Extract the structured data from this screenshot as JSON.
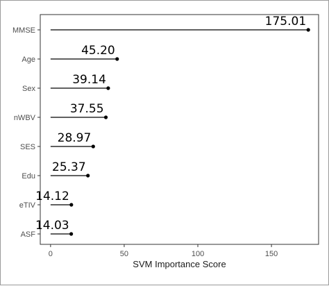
{
  "chart_data": {
    "type": "lollipop",
    "categories": [
      "MMSE",
      "Age",
      "Sex",
      "nWBV",
      "SES",
      "Edu",
      "eTIV",
      "ASF"
    ],
    "values": [
      175.01,
      45.2,
      39.14,
      37.55,
      28.97,
      25.37,
      14.12,
      14.03
    ],
    "value_labels": [
      "175.01",
      "45.20",
      "39.14",
      "37.55",
      "28.97",
      "25.37",
      "14.12",
      "14.03"
    ],
    "xlabel": "SVM Importance Score",
    "xlim": [
      -7,
      182
    ],
    "xticks": [
      0,
      50,
      100,
      150
    ],
    "grid": false,
    "panel_border": true,
    "colors": {
      "stem": "#000000",
      "point": "#000000",
      "panel_border": "#333333",
      "tick_label": "#4d4d4d"
    }
  }
}
